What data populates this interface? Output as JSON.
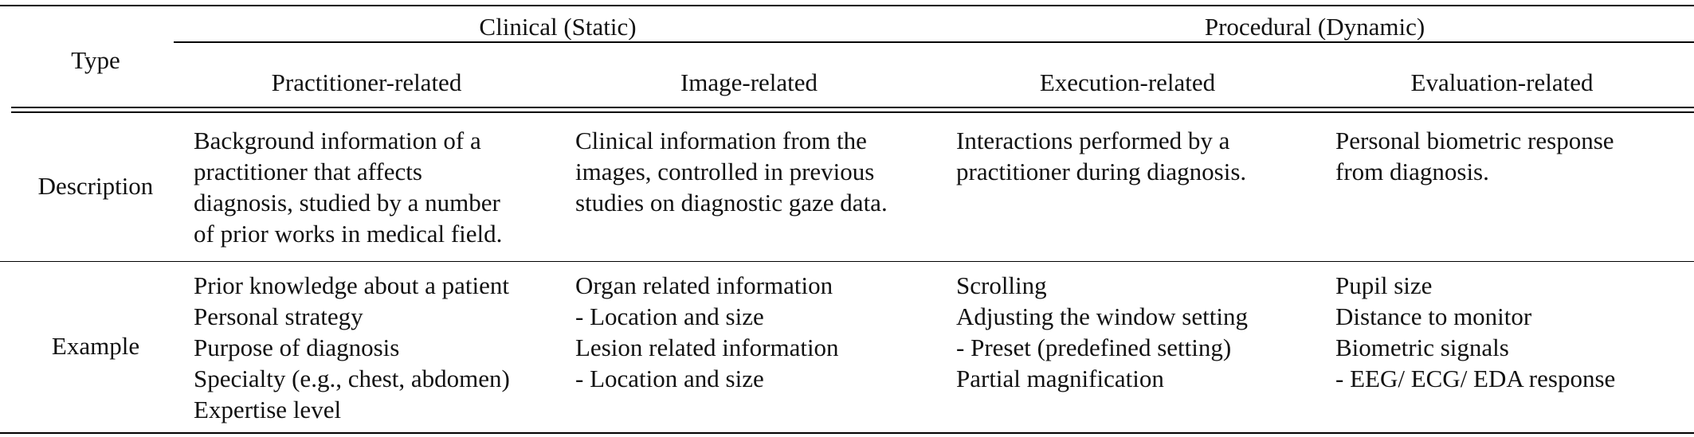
{
  "header": {
    "type_label": "Type",
    "group_clinical": "Clinical (Static)",
    "group_procedural": "Procedural (Dynamic)",
    "col_practitioner": "Practitioner-related",
    "col_image": "Image-related",
    "col_execution": "Execution-related",
    "col_evaluation": "Evaluation-related"
  },
  "rows": {
    "description": {
      "label": "Description",
      "practitioner": "Background information of a\npractitioner that affects\ndiagnosis, studied by a number\nof prior works in medical field.",
      "image": "Clinical information from the\nimages, controlled in previous\nstudies on diagnostic gaze data.",
      "execution": "Interactions performed by a\npractitioner during diagnosis.",
      "evaluation": "Personal biometric response\nfrom diagnosis."
    },
    "example": {
      "label": "Example",
      "practitioner": [
        "Prior knowledge about a patient",
        "Personal strategy",
        "Purpose of diagnosis",
        "Specialty (e.g., chest, abdomen)",
        "Expertise level"
      ],
      "image": [
        "Organ related information",
        "- Location and size",
        "Lesion related information",
        "- Location and size"
      ],
      "execution": [
        "Scrolling",
        "Adjusting the window setting",
        "- Preset (predefined setting)",
        "Partial magnification"
      ],
      "evaluation": [
        "Pupil size",
        "Distance to monitor",
        "Biometric signals",
        "- EEG/ ECG/ EDA response"
      ]
    }
  }
}
